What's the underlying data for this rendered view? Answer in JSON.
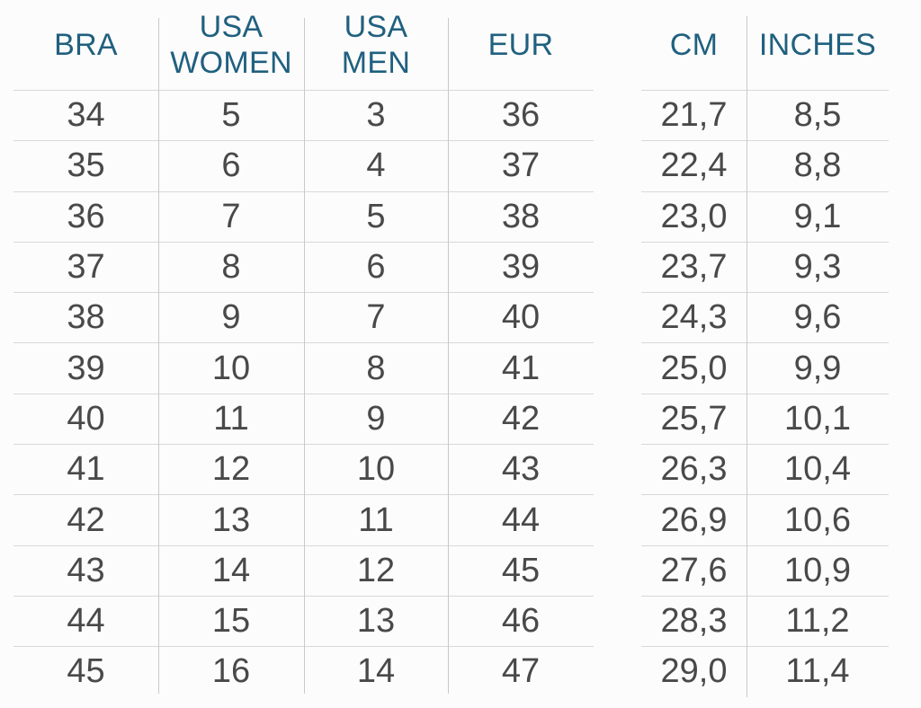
{
  "colors": {
    "background": "#fcfcfc",
    "header_text": "#20607f",
    "cell_text": "#494949",
    "row_line": "#d8d8d8",
    "column_line": "#c9c9c9"
  },
  "chart_data": {
    "type": "table",
    "tables": [
      {
        "name": "shoe-size-conversion",
        "headers": [
          "BRA",
          "USA WOMEN",
          "USA MEN",
          "EUR"
        ],
        "rows": [
          [
            "34",
            "5",
            "3",
            "36"
          ],
          [
            "35",
            "6",
            "4",
            "37"
          ],
          [
            "36",
            "7",
            "5",
            "38"
          ],
          [
            "37",
            "8",
            "6",
            "39"
          ],
          [
            "38",
            "9",
            "7",
            "40"
          ],
          [
            "39",
            "10",
            "8",
            "41"
          ],
          [
            "40",
            "11",
            "9",
            "42"
          ],
          [
            "41",
            "12",
            "10",
            "43"
          ],
          [
            "42",
            "13",
            "11",
            "44"
          ],
          [
            "43",
            "14",
            "12",
            "45"
          ],
          [
            "44",
            "15",
            "13",
            "46"
          ],
          [
            "45",
            "16",
            "14",
            "47"
          ]
        ]
      },
      {
        "name": "foot-length",
        "headers": [
          "CM",
          "INCHES"
        ],
        "rows": [
          [
            "21,7",
            "8,5"
          ],
          [
            "22,4",
            "8,8"
          ],
          [
            "23,0",
            "9,1"
          ],
          [
            "23,7",
            "9,3"
          ],
          [
            "24,3",
            "9,6"
          ],
          [
            "25,0",
            "9,9"
          ],
          [
            "25,7",
            "10,1"
          ],
          [
            "26,3",
            "10,4"
          ],
          [
            "26,9",
            "10,6"
          ],
          [
            "27,6",
            "10,9"
          ],
          [
            "28,3",
            "11,2"
          ],
          [
            "29,0",
            "11,4"
          ]
        ]
      }
    ]
  }
}
